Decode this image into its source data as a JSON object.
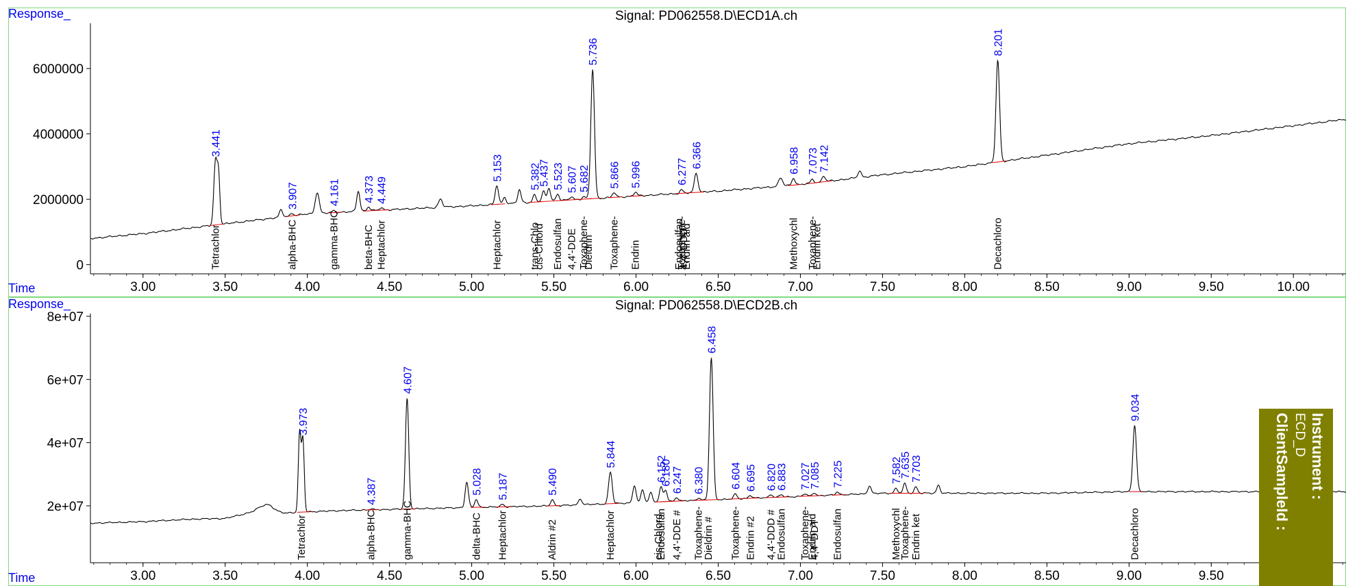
{
  "colors": {
    "trace": "#000000",
    "baseline": "#dd0000",
    "peak_label": "#0000ee",
    "frame": "#7fd97f",
    "instrument_box": "#808000"
  },
  "instrument_box": {
    "instrument_label": "Instrument :",
    "instrument_value": "ECD_D",
    "client_label": "ClientSampleId :"
  },
  "chart_data": [
    {
      "type": "line",
      "title": "Signal: PD062558.D\\ECD1A.ch",
      "ylabel": "Response_",
      "xlabel": "Time",
      "xlim": [
        2.68,
        10.32
      ],
      "ylim": [
        -280000,
        7300000
      ],
      "xticks": [
        "3.00",
        "3.50",
        "4.00",
        "4.50",
        "5.00",
        "5.50",
        "6.00",
        "6.50",
        "7.00",
        "7.50",
        "8.00",
        "8.50",
        "9.00",
        "9.50",
        "10.00"
      ],
      "yticks": [
        "0",
        "2000000",
        "4000000",
        "6000000"
      ],
      "baseline_points": [
        [
          2.68,
          800000
        ],
        [
          3.0,
          950000
        ],
        [
          3.5,
          1250000
        ],
        [
          4.0,
          1550000
        ],
        [
          4.5,
          1680000
        ],
        [
          5.0,
          1800000
        ],
        [
          5.5,
          1950000
        ],
        [
          6.0,
          2100000
        ],
        [
          6.5,
          2250000
        ],
        [
          7.0,
          2450000
        ],
        [
          7.5,
          2750000
        ],
        [
          8.0,
          3000000
        ],
        [
          8.5,
          3350000
        ],
        [
          9.0,
          3700000
        ],
        [
          9.5,
          3950000
        ],
        [
          10.0,
          4250000
        ],
        [
          10.32,
          4450000
        ]
      ],
      "peaks": [
        {
          "rt": 3.441,
          "h": 1950000,
          "w": 0.01,
          "label": "3.441"
        },
        {
          "rt": 3.46,
          "h": 1450000,
          "w": 0.008
        },
        {
          "rt": 3.84,
          "h": 220000,
          "w": 0.01
        },
        {
          "rt": 3.907,
          "h": 80000,
          "w": 0.01,
          "label": "3.907"
        },
        {
          "rt": 4.06,
          "h": 650000,
          "w": 0.012
        },
        {
          "rt": 4.161,
          "h": 60000,
          "w": 0.01,
          "label": "4.161"
        },
        {
          "rt": 4.31,
          "h": 620000,
          "w": 0.01
        },
        {
          "rt": 4.373,
          "h": 120000,
          "w": 0.01,
          "label": "4.373"
        },
        {
          "rt": 4.449,
          "h": 80000,
          "w": 0.01,
          "label": "4.449"
        },
        {
          "rt": 4.81,
          "h": 250000,
          "w": 0.012
        },
        {
          "rt": 5.153,
          "h": 580000,
          "w": 0.01,
          "label": "5.153"
        },
        {
          "rt": 5.2,
          "h": 200000,
          "w": 0.01
        },
        {
          "rt": 5.29,
          "h": 400000,
          "w": 0.01
        },
        {
          "rt": 5.382,
          "h": 220000,
          "w": 0.01,
          "label": "5.382"
        },
        {
          "rt": 5.437,
          "h": 300000,
          "w": 0.01,
          "label": "5.437"
        },
        {
          "rt": 5.47,
          "h": 400000,
          "w": 0.01
        },
        {
          "rt": 5.523,
          "h": 200000,
          "w": 0.01,
          "label": "5.523"
        },
        {
          "rt": 5.607,
          "h": 100000,
          "w": 0.01,
          "label": "5.607"
        },
        {
          "rt": 5.682,
          "h": 80000,
          "w": 0.01,
          "label": "5.682"
        },
        {
          "rt": 5.736,
          "h": 3950000,
          "w": 0.011,
          "label": "5.736"
        },
        {
          "rt": 5.866,
          "h": 150000,
          "w": 0.01,
          "label": "5.866"
        },
        {
          "rt": 5.996,
          "h": 120000,
          "w": 0.01,
          "label": "5.996"
        },
        {
          "rt": 6.277,
          "h": 100000,
          "w": 0.01,
          "label": "6.277"
        },
        {
          "rt": 6.366,
          "h": 600000,
          "w": 0.011,
          "label": "6.366"
        },
        {
          "rt": 6.88,
          "h": 250000,
          "w": 0.012
        },
        {
          "rt": 6.958,
          "h": 220000,
          "w": 0.01,
          "label": "6.958"
        },
        {
          "rt": 7.073,
          "h": 120000,
          "w": 0.01,
          "label": "7.073"
        },
        {
          "rt": 7.142,
          "h": 180000,
          "w": 0.01,
          "label": "7.142"
        },
        {
          "rt": 7.36,
          "h": 200000,
          "w": 0.01
        },
        {
          "rt": 8.201,
          "h": 3100000,
          "w": 0.011,
          "label": "8.201"
        }
      ],
      "compounds": [
        {
          "rt": 3.441,
          "name": "Tetrachlor"
        },
        {
          "rt": 3.907,
          "name": "alpha-BHC"
        },
        {
          "rt": 4.161,
          "name": "gamma-BHC"
        },
        {
          "rt": 4.373,
          "name": "beta-BHC"
        },
        {
          "rt": 4.449,
          "name": "Heptachlor"
        },
        {
          "rt": 5.153,
          "name": "Heptachlor"
        },
        {
          "rt": 5.382,
          "name": "trans-Chlo"
        },
        {
          "rt": 5.41,
          "name": "cis-Chlord"
        },
        {
          "rt": 5.523,
          "name": "Endosulfan"
        },
        {
          "rt": 5.607,
          "name": "4,4'-DDE"
        },
        {
          "rt": 5.682,
          "name": "Toxaphene-"
        },
        {
          "rt": 5.71,
          "name": "Dieldrin"
        },
        {
          "rt": 5.866,
          "name": "Toxaphene-"
        },
        {
          "rt": 5.996,
          "name": "Endrin"
        },
        {
          "rt": 6.26,
          "name": "Endosulfan"
        },
        {
          "rt": 6.277,
          "name": "Toxaphene-"
        },
        {
          "rt": 6.29,
          "name": "4,4'-DDD"
        },
        {
          "rt": 6.306,
          "name": "Endrin ald"
        },
        {
          "rt": 6.958,
          "name": "Methoxychl"
        },
        {
          "rt": 7.073,
          "name": "Toxaphene-"
        },
        {
          "rt": 7.1,
          "name": "Endrin ket"
        },
        {
          "rt": 8.201,
          "name": "Decachloro"
        }
      ]
    },
    {
      "type": "line",
      "title": "Signal: PD062558.D\\ECD2B.ch",
      "ylabel": "Response_",
      "xlabel": "Time",
      "xlim": [
        2.68,
        10.32
      ],
      "ylim": [
        2000000,
        80000000
      ],
      "xticks": [
        "3.00",
        "3.50",
        "4.00",
        "4.50",
        "5.00",
        "5.50",
        "6.00",
        "6.50",
        "7.00",
        "7.50",
        "8.00",
        "8.50",
        "9.00",
        "9.50"
      ],
      "yticks": [
        "2e+07",
        "4e+07",
        "6e+07",
        "8e+07"
      ],
      "baseline_points": [
        [
          2.68,
          14500000
        ],
        [
          3.0,
          15000000
        ],
        [
          3.3,
          15800000
        ],
        [
          3.5,
          16000000
        ],
        [
          3.7,
          18500000
        ],
        [
          3.8,
          17500000
        ],
        [
          3.95,
          18000000
        ],
        [
          4.2,
          18500000
        ],
        [
          4.6,
          19000000
        ],
        [
          5.0,
          19500000
        ],
        [
          5.5,
          20000000
        ],
        [
          6.0,
          21000000
        ],
        [
          6.5,
          22000000
        ],
        [
          7.0,
          23000000
        ],
        [
          7.5,
          24000000
        ],
        [
          8.0,
          24000000
        ],
        [
          8.5,
          24000000
        ],
        [
          9.0,
          24500000
        ],
        [
          9.5,
          24500000
        ],
        [
          10.32,
          24500000
        ]
      ],
      "peaks": [
        {
          "rt": 3.76,
          "h": 2500000,
          "w": 0.04
        },
        {
          "rt": 3.953,
          "h": 25000000,
          "w": 0.008
        },
        {
          "rt": 3.973,
          "h": 23000000,
          "w": 0.008,
          "label": "3.973"
        },
        {
          "rt": 4.387,
          "h": 300000,
          "w": 0.01,
          "label": "4.387"
        },
        {
          "rt": 4.607,
          "h": 35000000,
          "w": 0.01,
          "label": "4.607"
        },
        {
          "rt": 4.97,
          "h": 8000000,
          "w": 0.01
        },
        {
          "rt": 5.028,
          "h": 2500000,
          "w": 0.01,
          "label": "5.028"
        },
        {
          "rt": 5.187,
          "h": 800000,
          "w": 0.01,
          "label": "5.187"
        },
        {
          "rt": 5.49,
          "h": 2000000,
          "w": 0.01,
          "label": "5.490"
        },
        {
          "rt": 5.66,
          "h": 2000000,
          "w": 0.01
        },
        {
          "rt": 5.844,
          "h": 10000000,
          "w": 0.011,
          "label": "5.844"
        },
        {
          "rt": 5.99,
          "h": 5500000,
          "w": 0.01
        },
        {
          "rt": 6.04,
          "h": 4000000,
          "w": 0.01
        },
        {
          "rt": 6.09,
          "h": 3000000,
          "w": 0.01
        },
        {
          "rt": 6.152,
          "h": 4500000,
          "w": 0.01,
          "label": "6.152"
        },
        {
          "rt": 6.18,
          "h": 3500000,
          "w": 0.01,
          "label": "6.180"
        },
        {
          "rt": 6.247,
          "h": 1200000,
          "w": 0.01,
          "label": "6.247"
        },
        {
          "rt": 6.38,
          "h": 800000,
          "w": 0.01,
          "label": "6.380"
        },
        {
          "rt": 6.458,
          "h": 45000000,
          "w": 0.011,
          "label": "6.458"
        },
        {
          "rt": 6.604,
          "h": 1500000,
          "w": 0.01,
          "label": "6.604"
        },
        {
          "rt": 6.695,
          "h": 1000000,
          "w": 0.01,
          "label": "6.695"
        },
        {
          "rt": 6.82,
          "h": 1000000,
          "w": 0.01,
          "label": "6.820"
        },
        {
          "rt": 6.883,
          "h": 800000,
          "w": 0.01,
          "label": "6.883"
        },
        {
          "rt": 7.027,
          "h": 800000,
          "w": 0.01,
          "label": "7.027"
        },
        {
          "rt": 7.085,
          "h": 1000000,
          "w": 0.01,
          "label": "7.085"
        },
        {
          "rt": 7.225,
          "h": 1000000,
          "w": 0.01,
          "label": "7.225"
        },
        {
          "rt": 7.42,
          "h": 2500000,
          "w": 0.01
        },
        {
          "rt": 7.582,
          "h": 1500000,
          "w": 0.01,
          "label": "7.582"
        },
        {
          "rt": 7.635,
          "h": 3000000,
          "w": 0.01,
          "label": "7.635"
        },
        {
          "rt": 7.703,
          "h": 2000000,
          "w": 0.01,
          "label": "7.703"
        },
        {
          "rt": 7.84,
          "h": 2500000,
          "w": 0.01
        },
        {
          "rt": 9.034,
          "h": 21000000,
          "w": 0.011,
          "label": "9.034"
        }
      ],
      "compounds": [
        {
          "rt": 3.963,
          "name": "Tetrachlor"
        },
        {
          "rt": 4.387,
          "name": "alpha-BHC"
        },
        {
          "rt": 4.607,
          "name": "gamma-BHC"
        },
        {
          "rt": 5.028,
          "name": "delta-BHC"
        },
        {
          "rt": 5.187,
          "name": "Heptachlor"
        },
        {
          "rt": 5.49,
          "name": "Aldrin #2"
        },
        {
          "rt": 5.844,
          "name": "Heptachlor"
        },
        {
          "rt": 6.135,
          "name": "cis-Chlord"
        },
        {
          "rt": 6.152,
          "name": "Endosulfan"
        },
        {
          "rt": 6.247,
          "name": "4,4'-DDE #"
        },
        {
          "rt": 6.38,
          "name": "Toxaphene-"
        },
        {
          "rt": 6.44,
          "name": "Dieldrin #"
        },
        {
          "rt": 6.604,
          "name": "Toxaphene-"
        },
        {
          "rt": 6.695,
          "name": "Endrin #2"
        },
        {
          "rt": 6.82,
          "name": "4,4'-DDD #"
        },
        {
          "rt": 6.883,
          "name": "Endosulfan"
        },
        {
          "rt": 7.027,
          "name": "Toxaphene-"
        },
        {
          "rt": 7.07,
          "name": "Endrin ald"
        },
        {
          "rt": 7.085,
          "name": "4,4'-DDT"
        },
        {
          "rt": 7.225,
          "name": "Endosulfan"
        },
        {
          "rt": 7.582,
          "name": "Methoxychl"
        },
        {
          "rt": 7.635,
          "name": "Toxaphene-"
        },
        {
          "rt": 7.703,
          "name": "Endrin ket"
        },
        {
          "rt": 9.034,
          "name": "Decachloro"
        }
      ]
    }
  ]
}
